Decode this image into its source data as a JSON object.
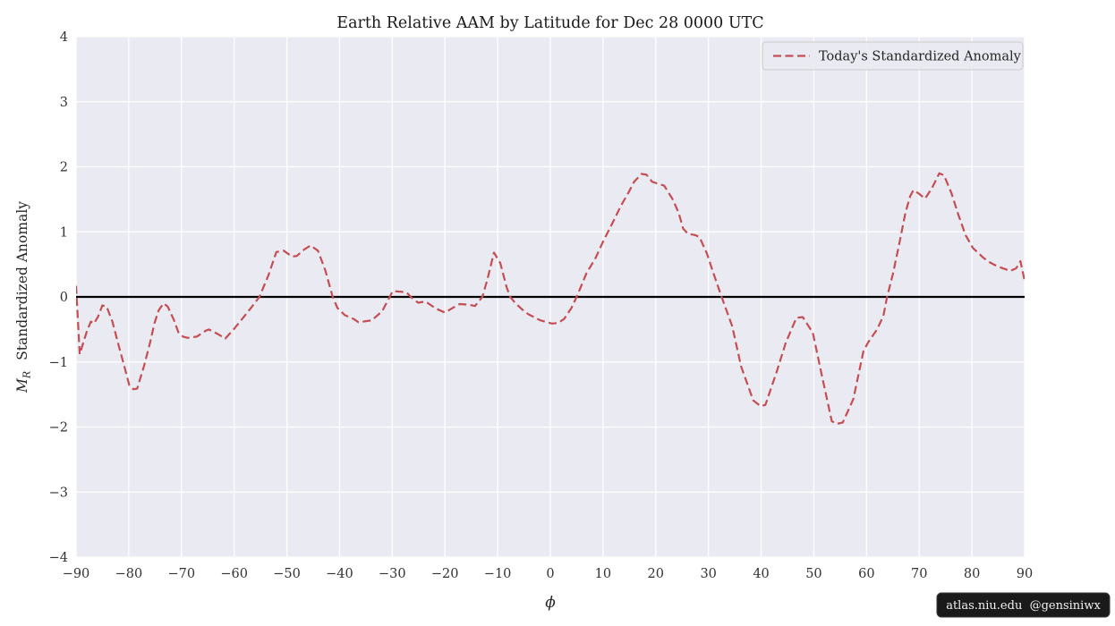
{
  "figure": {
    "title": "Earth Relative AAM by Latitude for Dec 28 0000 UTC",
    "watermark": "atlas.niu.edu  @gensiniwx"
  },
  "legend": {
    "label": "Today's Standardized Anomaly"
  },
  "axes": {
    "xlabel": "ϕ",
    "ylabel_symbol": "M",
    "ylabel_subscript": "R",
    "ylabel_text": "Standardized Anomaly"
  },
  "colors": {
    "line": "#C44E52",
    "axes_bg": "#EAEAF2",
    "grid": "#FFFFFF",
    "zero_line": "#000000",
    "legend_bg": "#EAEAF2",
    "legend_border": "#CCCCCC",
    "badge_bg": "#1A1A1A",
    "badge_text": "#F2F2F2"
  },
  "chart_data": {
    "type": "line",
    "title": "Earth Relative AAM by Latitude for Dec 28 0000 UTC",
    "xlabel": "phi (latitude, degrees)",
    "ylabel": "M_R Standardized Anomaly",
    "xlim": [
      -90,
      90
    ],
    "ylim": [
      -4,
      4
    ],
    "grid": true,
    "legend_position": "upper right",
    "reference_line_y": 0,
    "xtick_values": [
      -90,
      -80,
      -70,
      -60,
      -50,
      -40,
      -30,
      -20,
      -10,
      0,
      10,
      20,
      30,
      40,
      50,
      60,
      70,
      80,
      90
    ],
    "xtick_labels": [
      "−90",
      "−80",
      "−70",
      "−60",
      "−50",
      "−40",
      "−30",
      "−20",
      "−10",
      "0",
      "10",
      "20",
      "30",
      "40",
      "50",
      "60",
      "70",
      "80",
      "90"
    ],
    "ytick_values": [
      -4,
      -3,
      -2,
      -1,
      0,
      1,
      2,
      3,
      4
    ],
    "ytick_labels": [
      "−4",
      "−3",
      "−2",
      "−1",
      "0",
      "1",
      "2",
      "3",
      "4"
    ],
    "series": [
      {
        "name": "Today's Standardized Anomaly",
        "style": "dashed",
        "color": "#C44E52",
        "points": [
          [
            -90,
            0.17
          ],
          [
            -89.3,
            -0.88
          ],
          [
            -88,
            -0.54
          ],
          [
            -87.2,
            -0.38
          ],
          [
            -86.6,
            -0.41
          ],
          [
            -85.8,
            -0.3
          ],
          [
            -85,
            -0.13
          ],
          [
            -84.2,
            -0.15
          ],
          [
            -83.1,
            -0.38
          ],
          [
            -82,
            -0.72
          ],
          [
            -80.9,
            -1.05
          ],
          [
            -79.9,
            -1.36
          ],
          [
            -79.1,
            -1.42
          ],
          [
            -78.4,
            -1.41
          ],
          [
            -77.1,
            -1.06
          ],
          [
            -76,
            -0.72
          ],
          [
            -75.1,
            -0.4
          ],
          [
            -74.3,
            -0.2
          ],
          [
            -73.4,
            -0.1
          ],
          [
            -72.6,
            -0.15
          ],
          [
            -71.4,
            -0.36
          ],
          [
            -70.6,
            -0.54
          ],
          [
            -69.7,
            -0.61
          ],
          [
            -68.8,
            -0.63
          ],
          [
            -67.1,
            -0.61
          ],
          [
            -65.4,
            -0.52
          ],
          [
            -64.8,
            -0.5
          ],
          [
            -63.1,
            -0.57
          ],
          [
            -61.7,
            -0.64
          ],
          [
            -60,
            -0.49
          ],
          [
            -58.3,
            -0.32
          ],
          [
            -56.9,
            -0.18
          ],
          [
            -55.2,
            0
          ],
          [
            -53.5,
            0.33
          ],
          [
            -52,
            0.69
          ],
          [
            -50.6,
            0.71
          ],
          [
            -49,
            0.62
          ],
          [
            -48.1,
            0.63
          ],
          [
            -46.7,
            0.73
          ],
          [
            -45.5,
            0.79
          ],
          [
            -44.1,
            0.71
          ],
          [
            -42.7,
            0.41
          ],
          [
            -41.3,
            0
          ],
          [
            -40.4,
            -0.17
          ],
          [
            -39,
            -0.28
          ],
          [
            -37.3,
            -0.34
          ],
          [
            -36.4,
            -0.39
          ],
          [
            -33.9,
            -0.36
          ],
          [
            -31.9,
            -0.22
          ],
          [
            -29.9,
            0.09
          ],
          [
            -28.4,
            0.08
          ],
          [
            -27.3,
            0.07
          ],
          [
            -26.2,
            -0.02
          ],
          [
            -25.1,
            -0.09
          ],
          [
            -23.7,
            -0.07
          ],
          [
            -21.7,
            -0.18
          ],
          [
            -20,
            -0.24
          ],
          [
            -18.3,
            -0.16
          ],
          [
            -17.2,
            -0.11
          ],
          [
            -15.5,
            -0.12
          ],
          [
            -14.3,
            -0.14
          ],
          [
            -12.9,
            0
          ],
          [
            -12,
            0.25
          ],
          [
            -10.7,
            0.68
          ],
          [
            -9.5,
            0.52
          ],
          [
            -8.3,
            0.15
          ],
          [
            -7.6,
            0
          ],
          [
            -6.7,
            -0.09
          ],
          [
            -5,
            -0.22
          ],
          [
            -4.1,
            -0.27
          ],
          [
            -1.9,
            -0.36
          ],
          [
            0.3,
            -0.41
          ],
          [
            1.5,
            -0.4
          ],
          [
            2.6,
            -0.34
          ],
          [
            4,
            -0.17
          ],
          [
            5,
            0
          ],
          [
            6.9,
            0.37
          ],
          [
            8.6,
            0.6
          ],
          [
            10,
            0.85
          ],
          [
            11.7,
            1.12
          ],
          [
            13.4,
            1.4
          ],
          [
            14.8,
            1.6
          ],
          [
            15.9,
            1.77
          ],
          [
            17.3,
            1.89
          ],
          [
            18.2,
            1.88
          ],
          [
            19.3,
            1.77
          ],
          [
            20.4,
            1.74
          ],
          [
            21.6,
            1.71
          ],
          [
            23.3,
            1.49
          ],
          [
            24.4,
            1.28
          ],
          [
            25.2,
            1.05
          ],
          [
            26.1,
            0.97
          ],
          [
            27.5,
            0.95
          ],
          [
            28.3,
            0.92
          ],
          [
            29.7,
            0.67
          ],
          [
            31,
            0.35
          ],
          [
            32.5,
            0
          ],
          [
            34.5,
            -0.45
          ],
          [
            36.2,
            -1.07
          ],
          [
            38.5,
            -1.59
          ],
          [
            39.9,
            -1.68
          ],
          [
            40.8,
            -1.66
          ],
          [
            43,
            -1.14
          ],
          [
            44.7,
            -0.7
          ],
          [
            46.7,
            -0.32
          ],
          [
            47.9,
            -0.31
          ],
          [
            49.8,
            -0.55
          ],
          [
            51.5,
            -1.2
          ],
          [
            53.4,
            -1.91
          ],
          [
            54.4,
            -1.95
          ],
          [
            55.5,
            -1.93
          ],
          [
            57.5,
            -1.57
          ],
          [
            59.4,
            -0.84
          ],
          [
            60.3,
            -0.7
          ],
          [
            62,
            -0.5
          ],
          [
            63.2,
            -0.29
          ],
          [
            63.9,
            0
          ],
          [
            65,
            0.35
          ],
          [
            66.3,
            0.85
          ],
          [
            67.4,
            1.3
          ],
          [
            68.3,
            1.55
          ],
          [
            68.9,
            1.64
          ],
          [
            69.9,
            1.59
          ],
          [
            71.1,
            1.51
          ],
          [
            72.4,
            1.67
          ],
          [
            73.8,
            1.9
          ],
          [
            74.7,
            1.87
          ],
          [
            76.1,
            1.6
          ],
          [
            77.4,
            1.27
          ],
          [
            78.8,
            0.95
          ],
          [
            80.2,
            0.75
          ],
          [
            81.4,
            0.66
          ],
          [
            82.2,
            0.6
          ],
          [
            83.4,
            0.53
          ],
          [
            84.8,
            0.47
          ],
          [
            86.2,
            0.43
          ],
          [
            87.3,
            0.4
          ],
          [
            88.4,
            0.44
          ],
          [
            89.2,
            0.55
          ],
          [
            90,
            0.25
          ]
        ]
      }
    ]
  }
}
